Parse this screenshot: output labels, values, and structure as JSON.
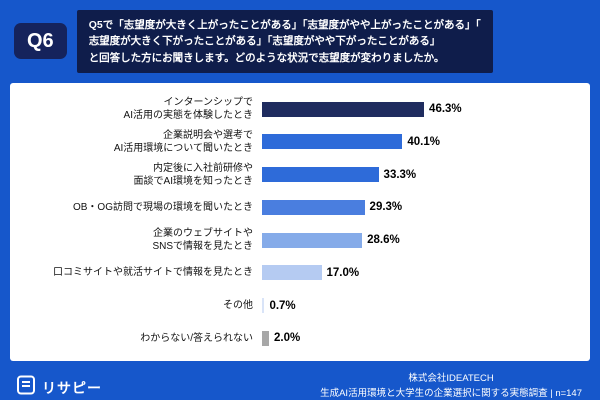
{
  "badge": "Q6",
  "header": {
    "line1": "Q5で「志望度が大きく上がったことがある」「志望度がやや上がったことがある」「",
    "line2": "志望度が大きく下がったことがある」「志望度がやや下がったことがある」",
    "line3": "と回答した方にお聞きします。どのような状況で志望度が変わりましたか。"
  },
  "chart_data": {
    "type": "bar",
    "orientation": "horizontal",
    "title": "どのような状況で志望度が変わりましたか",
    "xlim": [
      0,
      50
    ],
    "grid": false,
    "legend": "none",
    "categories": [
      "インターンシップで\nAI活用の実態を体験したとき",
      "企業説明会や選考で\nAI活用環境について聞いたとき",
      "内定後に入社前研修や\n面談でAI環境を知ったとき",
      "OB・OG訪問で現場の環境を聞いたとき",
      "企業のウェブサイトや\nSNSで情報を見たとき",
      "口コミサイトや就活サイトで情報を見たとき",
      "その他",
      "わからない/答えられない"
    ],
    "values": [
      46.3,
      40.1,
      33.3,
      29.3,
      28.6,
      17.0,
      0.7,
      2.0
    ],
    "value_labels": [
      "46.3%",
      "40.1%",
      "33.3%",
      "29.3%",
      "28.6%",
      "17.0%",
      "0.7%",
      "2.0%"
    ],
    "bar_colors": [
      "#1f2c5f",
      "#2e6bd9",
      "#2e6bd9",
      "#4a7edf",
      "#85abe9",
      "#b5cbf2",
      "#d9e4f8",
      "#a7a7a7"
    ]
  },
  "footer": {
    "logo_text": "リサピー",
    "company": "株式会社IDEATECH",
    "survey": "生成AI活用環境と大学生の企業選択に関する実態調査 | n=147"
  },
  "colors": {
    "background": "#1657cb",
    "header_box": "#0f1d4b",
    "badge": "#15235c",
    "card": "#ffffff"
  }
}
